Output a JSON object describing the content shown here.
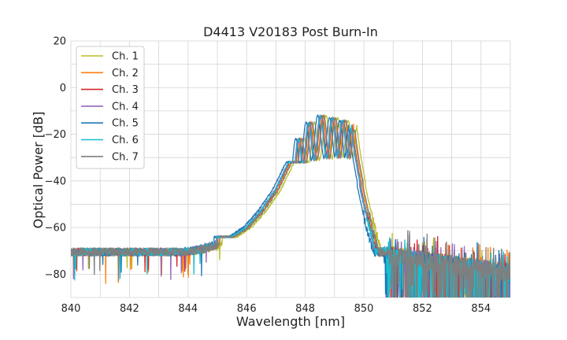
{
  "chart_data": {
    "type": "line",
    "title": "D4413 V20183 Post Burn-In",
    "xlabel": "Wavelength [nm]",
    "ylabel": "Optical Power [dB]",
    "xlim": [
      840,
      855
    ],
    "ylim": [
      -90,
      20
    ],
    "xticks": [
      840,
      842,
      844,
      846,
      848,
      850,
      852,
      854
    ],
    "yticks": [
      -80,
      -60,
      -40,
      -20,
      0,
      20
    ],
    "xtick_labels": [
      "840",
      "842",
      "844",
      "846",
      "848",
      "850",
      "852",
      "854"
    ],
    "ytick_labels": [
      "−80",
      "−60",
      "−40",
      "−20",
      "0",
      "20"
    ],
    "grid": true,
    "legend_position": "top-left",
    "series": [
      {
        "name": "Ch. 1",
        "color": "#bcbd22",
        "shift": 0.16,
        "seed": 11
      },
      {
        "name": "Ch. 2",
        "color": "#ff7f0e",
        "shift": 0.05,
        "seed": 23
      },
      {
        "name": "Ch. 3",
        "color": "#d62728",
        "shift": 0.0,
        "seed": 37
      },
      {
        "name": "Ch. 4",
        "color": "#9467bd",
        "shift": -0.04,
        "seed": 41
      },
      {
        "name": "Ch. 5",
        "color": "#1f77b4",
        "shift": -0.12,
        "seed": 53
      },
      {
        "name": "Ch. 6",
        "color": "#17becf",
        "shift": -0.02,
        "seed": 67
      },
      {
        "name": "Ch. 7",
        "color": "#7f7f7f",
        "shift": 0.08,
        "seed": 79
      }
    ],
    "spectrum_envelope": {
      "x": [
        840,
        842,
        843,
        844,
        845,
        845.5,
        846,
        846.5,
        847,
        847.5,
        847.8,
        848.2,
        848.6,
        849.0,
        849.4,
        849.7,
        849.9,
        850.2,
        851,
        852,
        855
      ],
      "y": [
        -70,
        -71,
        -71,
        -69,
        -66,
        -66,
        -62,
        -55,
        -46,
        -33,
        -22,
        -15,
        -13,
        -14,
        -17,
        -22,
        -40,
        -64,
        -72,
        -80,
        -82
      ]
    },
    "peaks": [
      {
        "x": 845.4,
        "y": -65
      },
      {
        "x": 846.0,
        "y": -62
      },
      {
        "x": 846.55,
        "y": -54
      },
      {
        "x": 847.05,
        "y": -45
      },
      {
        "x": 847.45,
        "y": -33
      },
      {
        "x": 847.8,
        "y": -22
      },
      {
        "x": 848.15,
        "y": -15
      },
      {
        "x": 848.55,
        "y": -12
      },
      {
        "x": 848.95,
        "y": -13
      },
      {
        "x": 849.3,
        "y": -14
      },
      {
        "x": 849.62,
        "y": -16
      }
    ]
  }
}
